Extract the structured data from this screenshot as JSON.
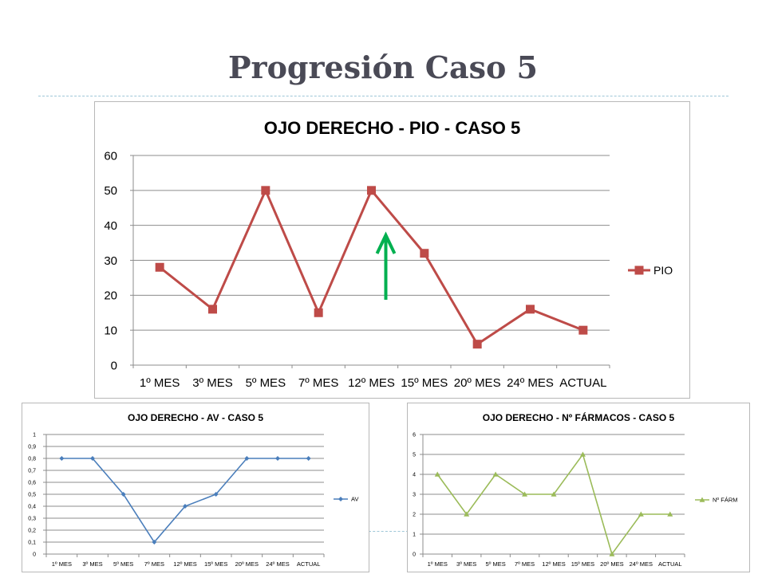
{
  "slide": {
    "title": "Progresión Caso 5"
  },
  "chart_data": [
    {
      "type": "line",
      "title": "OJO DERECHO - PIO  - CASO 5",
      "categories": [
        "1º MES",
        "3º MES",
        "5º MES",
        "7º MES",
        "12º MES",
        "15º MES",
        "20º MES",
        "24º MES",
        "ACTUAL"
      ],
      "series": [
        {
          "name": "PIO",
          "values": [
            28,
            16,
            50,
            15,
            50,
            32,
            6,
            16,
            10
          ],
          "color": "#be4b48",
          "marker": "square"
        }
      ],
      "ylim": [
        0,
        60
      ],
      "yticks": [
        "0",
        "10",
        "20",
        "30",
        "40",
        "50",
        "60"
      ],
      "grid": true,
      "legend": "right",
      "annotation": {
        "type": "arrow-up",
        "color": "#00b050",
        "at_category": "12º MES"
      }
    },
    {
      "type": "line",
      "title": "OJO DERECHO - AV  - CASO 5",
      "categories": [
        "1º MES",
        "3º MES",
        "5º MES",
        "7º MES",
        "12º MES",
        "15º MES",
        "20º MES",
        "24º MES",
        "ACTUAL"
      ],
      "series": [
        {
          "name": "AV",
          "values": [
            0.8,
            0.8,
            0.5,
            0.1,
            0.4,
            0.5,
            0.8,
            0.8,
            0.8
          ],
          "color": "#4a7ebb",
          "marker": "diamond"
        }
      ],
      "ylim": [
        0,
        1
      ],
      "yticks": [
        "0",
        "0,1",
        "0,2",
        "0,3",
        "0,4",
        "0,5",
        "0,6",
        "0,7",
        "0,8",
        "0,9",
        "1"
      ],
      "grid": true,
      "legend": "right"
    },
    {
      "type": "line",
      "title": "OJO DERECHO - Nº FÁRMACOS  - CASO 5",
      "categories": [
        "1º MES",
        "3º MES",
        "5º MES",
        "7º MES",
        "12º MES",
        "15º MES",
        "20º MES",
        "24º MES",
        "ACTUAL"
      ],
      "series": [
        {
          "name": "Nº FÁRM",
          "values": [
            4,
            2,
            4,
            3,
            3,
            5,
            0,
            2,
            2
          ],
          "color": "#9bbb59",
          "marker": "triangle"
        }
      ],
      "ylim": [
        0,
        6
      ],
      "yticks": [
        "0",
        "1",
        "2",
        "3",
        "4",
        "5",
        "6"
      ],
      "grid": true,
      "legend": "right"
    }
  ]
}
